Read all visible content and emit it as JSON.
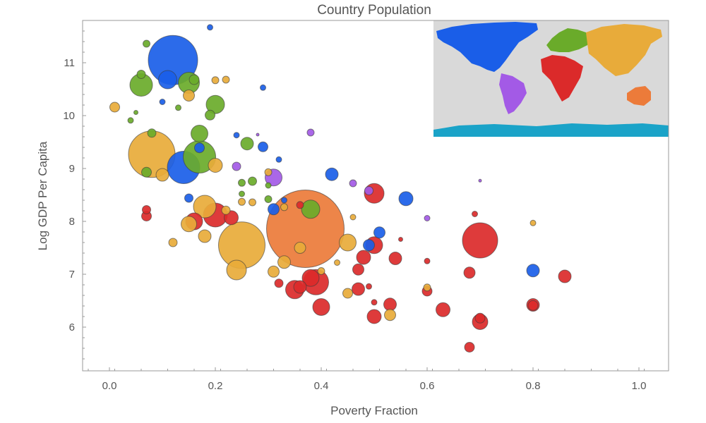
{
  "chart_data": {
    "type": "scatter",
    "title": "Country Population",
    "xlabel": "Poverty Fraction",
    "ylabel": "Log GDP Per Capita",
    "xlim": [
      -0.05,
      1.05
    ],
    "ylim": [
      5.2,
      11.8
    ],
    "x_ticks": [
      "0.0",
      "0.2",
      "0.4",
      "0.6",
      "0.8",
      "1.0"
    ],
    "y_ticks": [
      "6",
      "7",
      "8",
      "9",
      "10",
      "11"
    ],
    "grid": false,
    "legend": "inset world map, top-right, continents colored by region",
    "colors": {
      "Americas_north": "#1a5ee8",
      "Americas_south": "#a35ae6",
      "Europe": "#6aab2a",
      "Asia": "#e8ab3a",
      "Africa": "#db2a2a",
      "Oceania": "#ec7b3a",
      "Antarctica": "#1aa3c8",
      "map_background": "#d9d9d9"
    },
    "series": [
      {
        "region": "Americas_north",
        "color": "#1a5ee8",
        "points": [
          {
            "x": 0.12,
            "y": 11.05,
            "r": 35
          },
          {
            "x": 0.11,
            "y": 10.68,
            "r": 13
          },
          {
            "x": 0.14,
            "y": 9.02,
            "r": 23
          },
          {
            "x": 0.19,
            "y": 11.67,
            "r": 4
          },
          {
            "x": 0.29,
            "y": 10.53,
            "r": 4
          },
          {
            "x": 0.24,
            "y": 9.63,
            "r": 4
          },
          {
            "x": 0.29,
            "y": 9.41,
            "r": 7
          },
          {
            "x": 0.32,
            "y": 9.17,
            "r": 4
          },
          {
            "x": 0.17,
            "y": 9.39,
            "r": 7
          },
          {
            "x": 0.15,
            "y": 8.44,
            "r": 6
          },
          {
            "x": 0.31,
            "y": 8.23,
            "r": 8
          },
          {
            "x": 0.33,
            "y": 8.4,
            "r": 4
          },
          {
            "x": 0.42,
            "y": 8.89,
            "r": 9
          },
          {
            "x": 0.49,
            "y": 7.55,
            "r": 8
          },
          {
            "x": 0.51,
            "y": 7.79,
            "r": 8
          },
          {
            "x": 0.56,
            "y": 8.43,
            "r": 10
          },
          {
            "x": 0.8,
            "y": 7.07,
            "r": 9
          },
          {
            "x": 0.1,
            "y": 10.26,
            "r": 4
          }
        ]
      },
      {
        "region": "Americas_south",
        "color": "#a35ae6",
        "points": [
          {
            "x": 0.31,
            "y": 8.83,
            "r": 12
          },
          {
            "x": 0.38,
            "y": 9.68,
            "r": 5
          },
          {
            "x": 0.24,
            "y": 9.04,
            "r": 6
          },
          {
            "x": 0.46,
            "y": 8.72,
            "r": 5
          },
          {
            "x": 0.49,
            "y": 8.58,
            "r": 6
          },
          {
            "x": 0.6,
            "y": 8.06,
            "r": 4
          },
          {
            "x": 0.7,
            "y": 8.77,
            "r": 2
          },
          {
            "x": 0.28,
            "y": 9.64,
            "r": 2
          }
        ]
      },
      {
        "region": "Europe",
        "color": "#6aab2a",
        "points": [
          {
            "x": 0.17,
            "y": 9.22,
            "r": 23
          },
          {
            "x": 0.15,
            "y": 10.62,
            "r": 15
          },
          {
            "x": 0.06,
            "y": 10.58,
            "r": 16
          },
          {
            "x": 0.07,
            "y": 11.36,
            "r": 5
          },
          {
            "x": 0.2,
            "y": 10.21,
            "r": 13
          },
          {
            "x": 0.17,
            "y": 9.66,
            "r": 12
          },
          {
            "x": 0.26,
            "y": 9.47,
            "r": 9
          },
          {
            "x": 0.27,
            "y": 8.76,
            "r": 6
          },
          {
            "x": 0.38,
            "y": 8.23,
            "r": 13
          },
          {
            "x": 0.19,
            "y": 10.01,
            "r": 7
          },
          {
            "x": 0.08,
            "y": 9.67,
            "r": 6
          },
          {
            "x": 0.07,
            "y": 8.93,
            "r": 7
          },
          {
            "x": 0.04,
            "y": 9.91,
            "r": 4
          },
          {
            "x": 0.05,
            "y": 10.06,
            "r": 3
          },
          {
            "x": 0.13,
            "y": 10.15,
            "r": 4
          },
          {
            "x": 0.06,
            "y": 10.78,
            "r": 6
          },
          {
            "x": 0.16,
            "y": 10.68,
            "r": 7
          },
          {
            "x": 0.25,
            "y": 8.52,
            "r": 4
          },
          {
            "x": 0.3,
            "y": 8.68,
            "r": 4
          },
          {
            "x": 0.3,
            "y": 8.42,
            "r": 5
          },
          {
            "x": 0.25,
            "y": 8.73,
            "r": 5
          }
        ]
      },
      {
        "region": "Asia",
        "color": "#e8ab3a",
        "points": [
          {
            "x": 0.08,
            "y": 9.27,
            "r": 33
          },
          {
            "x": 0.25,
            "y": 7.55,
            "r": 33
          },
          {
            "x": 0.18,
            "y": 8.28,
            "r": 16
          },
          {
            "x": 0.24,
            "y": 7.08,
            "r": 14
          },
          {
            "x": 0.45,
            "y": 7.6,
            "r": 12
          },
          {
            "x": 0.01,
            "y": 10.16,
            "r": 7
          },
          {
            "x": 0.1,
            "y": 8.88,
            "r": 9
          },
          {
            "x": 0.2,
            "y": 9.06,
            "r": 10
          },
          {
            "x": 0.15,
            "y": 7.95,
            "r": 11
          },
          {
            "x": 0.18,
            "y": 7.72,
            "r": 9
          },
          {
            "x": 0.12,
            "y": 7.6,
            "r": 6
          },
          {
            "x": 0.15,
            "y": 10.38,
            "r": 8
          },
          {
            "x": 0.2,
            "y": 10.67,
            "r": 5
          },
          {
            "x": 0.22,
            "y": 10.68,
            "r": 5
          },
          {
            "x": 0.31,
            "y": 7.05,
            "r": 8
          },
          {
            "x": 0.33,
            "y": 7.23,
            "r": 9
          },
          {
            "x": 0.4,
            "y": 7.06,
            "r": 5
          },
          {
            "x": 0.45,
            "y": 6.64,
            "r": 7
          },
          {
            "x": 0.53,
            "y": 6.23,
            "r": 8
          },
          {
            "x": 0.6,
            "y": 6.75,
            "r": 5
          },
          {
            "x": 0.8,
            "y": 7.97,
            "r": 4
          },
          {
            "x": 0.22,
            "y": 8.21,
            "r": 6
          },
          {
            "x": 0.33,
            "y": 8.27,
            "r": 5
          },
          {
            "x": 0.27,
            "y": 8.36,
            "r": 5
          },
          {
            "x": 0.25,
            "y": 8.37,
            "r": 5
          },
          {
            "x": 0.46,
            "y": 8.08,
            "r": 4
          },
          {
            "x": 0.43,
            "y": 7.22,
            "r": 4
          },
          {
            "x": 0.36,
            "y": 7.5,
            "r": 8
          },
          {
            "x": 0.3,
            "y": 8.93,
            "r": 5
          }
        ]
      },
      {
        "region": "Oceania",
        "color": "#ec7b3a",
        "points": [
          {
            "x": 0.37,
            "y": 7.86,
            "r": 55
          }
        ]
      },
      {
        "region": "Africa",
        "color": "#db2a2a",
        "points": [
          {
            "x": 0.7,
            "y": 7.64,
            "r": 25
          },
          {
            "x": 0.2,
            "y": 8.12,
            "r": 17
          },
          {
            "x": 0.39,
            "y": 6.85,
            "r": 18
          },
          {
            "x": 0.38,
            "y": 6.93,
            "r": 12
          },
          {
            "x": 0.35,
            "y": 6.71,
            "r": 13
          },
          {
            "x": 0.36,
            "y": 6.76,
            "r": 9
          },
          {
            "x": 0.5,
            "y": 8.53,
            "r": 14
          },
          {
            "x": 0.5,
            "y": 7.55,
            "r": 12
          },
          {
            "x": 0.48,
            "y": 7.32,
            "r": 10
          },
          {
            "x": 0.47,
            "y": 7.09,
            "r": 8
          },
          {
            "x": 0.47,
            "y": 6.72,
            "r": 9
          },
          {
            "x": 0.54,
            "y": 7.3,
            "r": 9
          },
          {
            "x": 0.4,
            "y": 6.38,
            "r": 12
          },
          {
            "x": 0.5,
            "y": 6.2,
            "r": 10
          },
          {
            "x": 0.53,
            "y": 6.43,
            "r": 9
          },
          {
            "x": 0.63,
            "y": 6.33,
            "r": 10
          },
          {
            "x": 0.7,
            "y": 6.1,
            "r": 11
          },
          {
            "x": 0.7,
            "y": 6.17,
            "r": 7
          },
          {
            "x": 0.68,
            "y": 7.03,
            "r": 8
          },
          {
            "x": 0.6,
            "y": 6.68,
            "r": 7
          },
          {
            "x": 0.8,
            "y": 6.42,
            "r": 9
          },
          {
            "x": 0.8,
            "y": 6.41,
            "r": 7
          },
          {
            "x": 0.86,
            "y": 6.96,
            "r": 9
          },
          {
            "x": 0.68,
            "y": 5.62,
            "r": 7
          },
          {
            "x": 0.23,
            "y": 8.07,
            "r": 10
          },
          {
            "x": 0.16,
            "y": 8.0,
            "r": 12
          },
          {
            "x": 0.07,
            "y": 8.1,
            "r": 7
          },
          {
            "x": 0.07,
            "y": 8.22,
            "r": 6
          },
          {
            "x": 0.32,
            "y": 6.83,
            "r": 6
          },
          {
            "x": 0.49,
            "y": 6.77,
            "r": 4
          },
          {
            "x": 0.5,
            "y": 6.47,
            "r": 4
          },
          {
            "x": 0.6,
            "y": 7.25,
            "r": 4
          },
          {
            "x": 0.69,
            "y": 8.14,
            "r": 4
          },
          {
            "x": 0.55,
            "y": 7.66,
            "r": 3
          },
          {
            "x": 0.36,
            "y": 8.31,
            "r": 5
          }
        ]
      }
    ]
  }
}
